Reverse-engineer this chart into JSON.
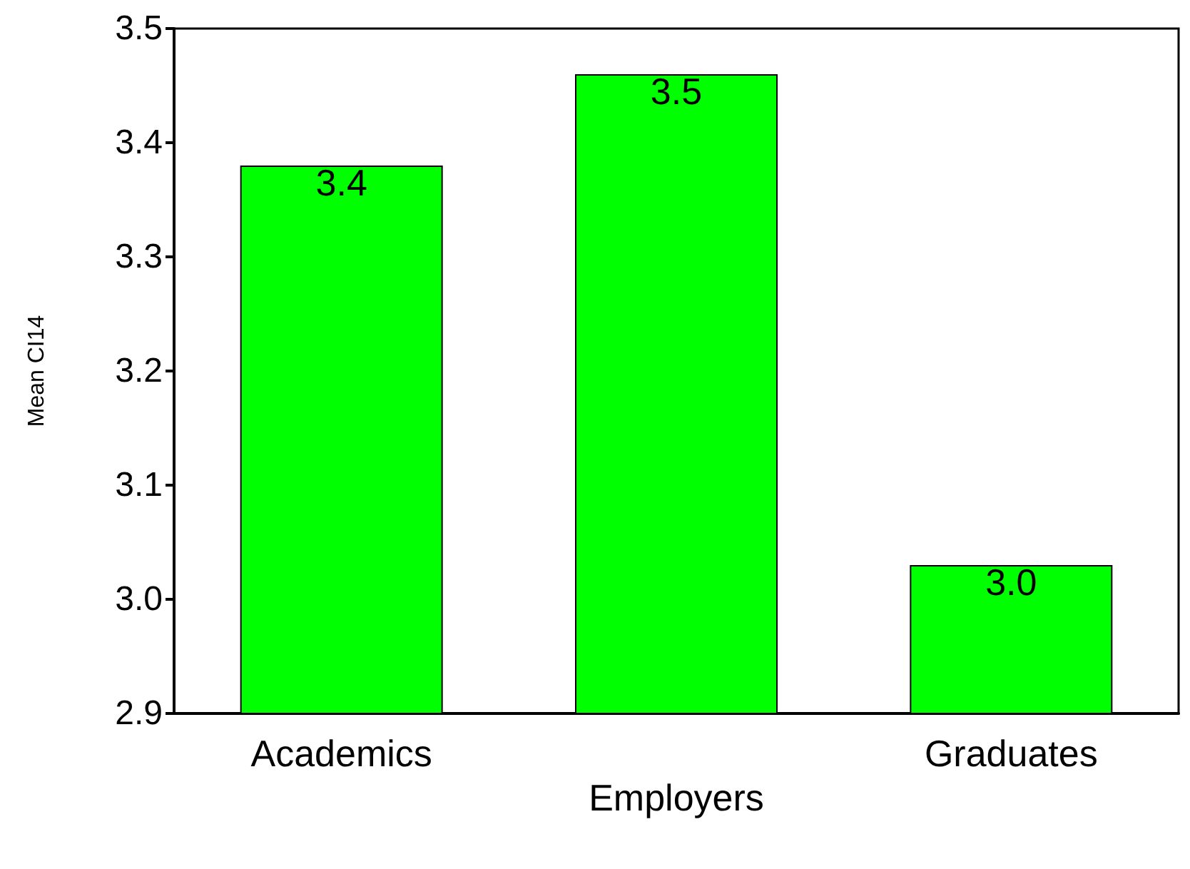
{
  "chart_data": {
    "type": "bar",
    "ylabel": "Mean CI14",
    "categories": [
      "Academics",
      "Employers",
      "Graduates"
    ],
    "values": [
      3.38,
      3.46,
      3.03
    ],
    "value_labels": [
      "3.4",
      "3.5",
      "3.0"
    ],
    "color": "#00ff00",
    "ylim": [
      2.9,
      3.5
    ],
    "yticks": [
      2.9,
      {
        "value": 3,
        "label": "3.0"
      },
      3.1,
      3.2,
      3.3,
      3.4,
      3.5
    ],
    "grid": false
  }
}
